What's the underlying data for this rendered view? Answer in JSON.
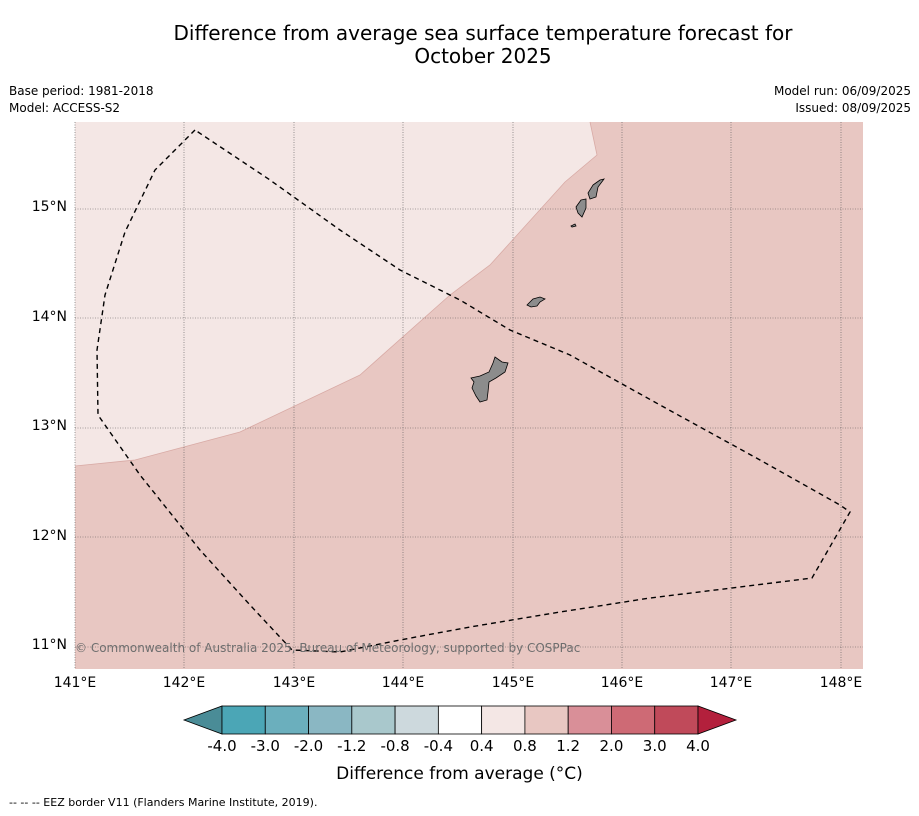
{
  "title_line1": "Difference from average sea surface temperature forecast for",
  "title_line2": "October 2025",
  "meta": {
    "base_period": "Base period: 1981-2018",
    "model": "Model: ACCESS-S2",
    "model_run": "Model run: 06/09/2025",
    "issued": "Issued: 08/09/2025"
  },
  "map": {
    "lon_range": [
      141.0,
      148.2
    ],
    "lat_range": [
      10.8,
      15.8
    ],
    "lat_ticks": [
      {
        "value": 15,
        "label": "15°N"
      },
      {
        "value": 14,
        "label": "14°N"
      },
      {
        "value": 13,
        "label": "13°N"
      },
      {
        "value": 12,
        "label": "12°N"
      },
      {
        "value": 11,
        "label": "11°N"
      }
    ],
    "lon_ticks": [
      {
        "value": 141,
        "label": "141°E"
      },
      {
        "value": 142,
        "label": "142°E"
      },
      {
        "value": 143,
        "label": "143°E"
      },
      {
        "value": 144,
        "label": "144°E"
      },
      {
        "value": 145,
        "label": "145°E"
      },
      {
        "value": 146,
        "label": "146°E"
      },
      {
        "value": 147,
        "label": "147°E"
      },
      {
        "value": 148,
        "label": "148°E"
      }
    ],
    "colors": {
      "anomaly_0_4_to_0_8": "#f4e7e5",
      "anomaly_0_8_to_1_2": "#e8c7c2",
      "land": "#8c8c8c",
      "grid": "#555555"
    },
    "copyright": "© Commonwealth of Australia 2025, Bureau of Meteorology, supported by COSPPac"
  },
  "colorbar": {
    "colors": [
      "#4a8c97",
      "#4ba6b6",
      "#6bafbd",
      "#8ab7c3",
      "#a9c8cc",
      "#cdd9dd",
      "#ffffff",
      "#f4e7e5",
      "#e8c7c2",
      "#d98f98",
      "#ce6a75",
      "#c04a5a",
      "#b3203c"
    ],
    "ticks": [
      "-4.0",
      "-3.0",
      "-2.0",
      "-1.2",
      "-0.8",
      "-0.4",
      "0.4",
      "0.8",
      "1.2",
      "2.0",
      "3.0",
      "4.0"
    ],
    "label": "Difference from average (°C)"
  },
  "footnote": "-- -- -- EEZ border V11 (Flanders Marine Institute, 2019)."
}
